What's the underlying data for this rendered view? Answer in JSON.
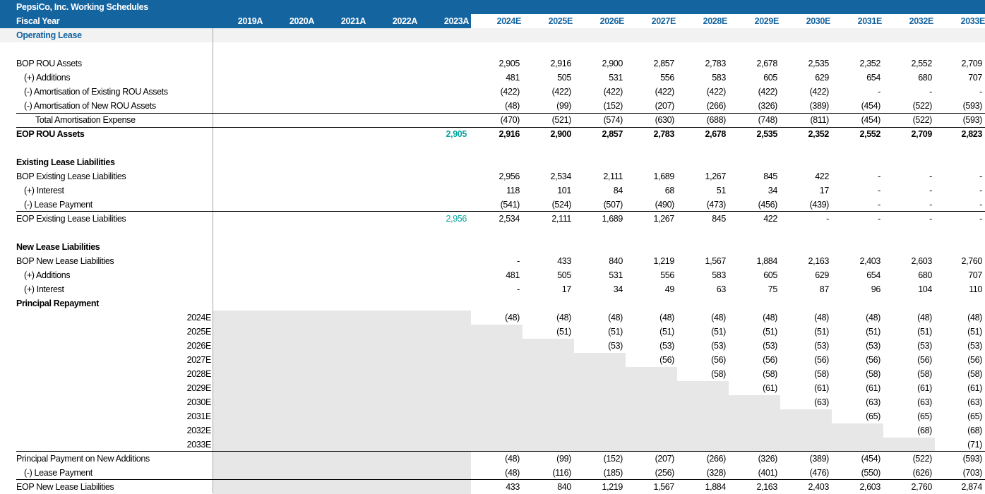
{
  "header": {
    "title": "PepsiCo, Inc. Working Schedules",
    "fiscal_year_label": "Fiscal Year",
    "section": "Operating Lease",
    "years": [
      "2019A",
      "2020A",
      "2021A",
      "2022A",
      "2023A",
      "2024E",
      "2025E",
      "2026E",
      "2027E",
      "2028E",
      "2029E",
      "2030E",
      "2031E",
      "2032E",
      "2033E"
    ]
  },
  "rou": {
    "bop_label": "BOP ROU Assets",
    "bop": [
      "2,905",
      "2,916",
      "2,900",
      "2,857",
      "2,783",
      "2,678",
      "2,535",
      "2,352",
      "2,552",
      "2,709"
    ],
    "add_label": "(+) Additions",
    "add": [
      "481",
      "505",
      "531",
      "556",
      "583",
      "605",
      "629",
      "654",
      "680",
      "707"
    ],
    "amort_existing_label": "(-) Amortisation of Existing ROU Assets",
    "amort_existing": [
      "(422)",
      "(422)",
      "(422)",
      "(422)",
      "(422)",
      "(422)",
      "(422)",
      "-",
      "-",
      "-"
    ],
    "amort_new_label": "(-) Amortisation of New ROU Assets",
    "amort_new": [
      "(48)",
      "(99)",
      "(152)",
      "(207)",
      "(266)",
      "(326)",
      "(389)",
      "(454)",
      "(522)",
      "(593)"
    ],
    "total_amort_label": "Total Amortisation Expense",
    "total_amort": [
      "(470)",
      "(521)",
      "(574)",
      "(630)",
      "(688)",
      "(748)",
      "(811)",
      "(454)",
      "(522)",
      "(593)"
    ],
    "eop_label": "EOP ROU Assets",
    "eop_2023": "2,905",
    "eop": [
      "2,916",
      "2,900",
      "2,857",
      "2,783",
      "2,678",
      "2,535",
      "2,352",
      "2,552",
      "2,709",
      "2,823"
    ]
  },
  "existing": {
    "heading": "Existing Lease Liabilities",
    "bop_label": "BOP Existing Lease Liabilities",
    "bop": [
      "2,956",
      "2,534",
      "2,111",
      "1,689",
      "1,267",
      "845",
      "422",
      "-",
      "-",
      "-"
    ],
    "interest_label": "(+) Interest",
    "interest": [
      "118",
      "101",
      "84",
      "68",
      "51",
      "34",
      "17",
      "-",
      "-",
      "-"
    ],
    "payment_label": "(-) Lease Payment",
    "payment": [
      "(541)",
      "(524)",
      "(507)",
      "(490)",
      "(473)",
      "(456)",
      "(439)",
      "-",
      "-",
      "-"
    ],
    "eop_label": "EOP Existing Lease Liabilities",
    "eop_2023": "2,956",
    "eop": [
      "2,534",
      "2,111",
      "1,689",
      "1,267",
      "845",
      "422",
      "-",
      "-",
      "-",
      "-"
    ]
  },
  "new": {
    "heading": "New Lease Liabilities",
    "bop_label": "BOP New Lease Liabilities",
    "bop": [
      "-",
      "433",
      "840",
      "1,219",
      "1,567",
      "1,884",
      "2,163",
      "2,403",
      "2,603",
      "2,760"
    ],
    "add_label": "(+) Additions",
    "add": [
      "481",
      "505",
      "531",
      "556",
      "583",
      "605",
      "629",
      "654",
      "680",
      "707"
    ],
    "interest_label": "(+) Interest",
    "interest": [
      "-",
      "17",
      "34",
      "49",
      "63",
      "75",
      "87",
      "96",
      "104",
      "110"
    ],
    "principal_heading": "Principal Repayment",
    "cohorts": [
      "2024E",
      "2025E",
      "2026E",
      "2027E",
      "2028E",
      "2029E",
      "2030E",
      "2031E",
      "2032E",
      "2033E"
    ],
    "repayments": [
      "(48)",
      "(51)",
      "(53)",
      "(56)",
      "(58)",
      "(61)",
      "(63)",
      "(65)",
      "(68)",
      "(71)"
    ],
    "principal_label": "Principal Payment on New Additions",
    "principal": [
      "(48)",
      "(99)",
      "(152)",
      "(207)",
      "(266)",
      "(326)",
      "(389)",
      "(454)",
      "(522)",
      "(593)"
    ],
    "payment_label": "(-) Lease Payment",
    "payment": [
      "(48)",
      "(116)",
      "(185)",
      "(256)",
      "(328)",
      "(401)",
      "(476)",
      "(550)",
      "(626)",
      "(703)"
    ],
    "eop_label": "EOP New Lease Liabilities",
    "eop": [
      "433",
      "840",
      "1,219",
      "1,567",
      "1,884",
      "2,163",
      "2,403",
      "2,603",
      "2,760",
      "2,874"
    ]
  }
}
